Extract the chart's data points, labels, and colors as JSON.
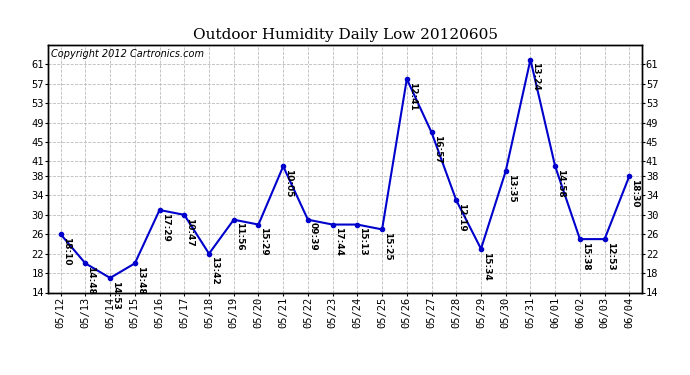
{
  "title": "Outdoor Humidity Daily Low 20120605",
  "copyright": "Copyright 2012 Cartronics.com",
  "line_color": "#0000cc",
  "background_color": "#ffffff",
  "grid_color": "#bbbbbb",
  "x_labels": [
    "05/12",
    "05/13",
    "05/14",
    "05/15",
    "05/16",
    "05/17",
    "05/18",
    "05/19",
    "05/20",
    "05/21",
    "05/22",
    "05/23",
    "05/24",
    "05/25",
    "05/26",
    "05/27",
    "05/28",
    "05/29",
    "05/30",
    "05/31",
    "06/01",
    "06/02",
    "06/03",
    "06/04"
  ],
  "y_values": [
    26,
    20,
    17,
    20,
    31,
    30,
    22,
    29,
    28,
    40,
    29,
    28,
    28,
    27,
    58,
    47,
    33,
    23,
    39,
    62,
    40,
    25,
    25,
    38
  ],
  "point_labels": [
    "18:10",
    "14:48",
    "14:53",
    "13:48",
    "17:29",
    "10:47",
    "13:42",
    "11:56",
    "15:29",
    "10:05",
    "09:39",
    "17:44",
    "15:13",
    "15:25",
    "12:41",
    "16:57",
    "12:19",
    "15:34",
    "13:35",
    "13:24",
    "14:58",
    "15:38",
    "12:53",
    "18:30"
  ],
  "ylim_min": 14,
  "ylim_max": 65,
  "yticks": [
    14,
    18,
    22,
    26,
    30,
    34,
    38,
    41,
    45,
    49,
    53,
    57,
    61
  ],
  "marker_size": 3,
  "line_width": 1.5,
  "title_fontsize": 11,
  "label_fontsize": 6.5,
  "tick_fontsize": 7.5,
  "copyright_fontsize": 7
}
